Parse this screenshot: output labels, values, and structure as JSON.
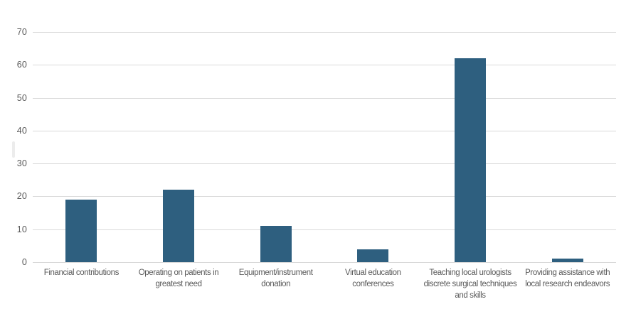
{
  "chart_data": {
    "type": "bar",
    "title": "",
    "categories": [
      "Financial contributions",
      "Operating on patients in greatest need",
      "Equipment/instrument donation",
      "Virtual education conferences",
      "Teaching local urologists discrete surgical techniques and skills",
      "Providing assistance with local research endeavors"
    ],
    "values": [
      19,
      22,
      11,
      4,
      62,
      1
    ],
    "xlabel": "",
    "ylabel": "",
    "yticks": [
      0,
      10,
      20,
      30,
      40,
      50,
      60,
      70
    ],
    "ylim": [
      0,
      70
    ],
    "grid": "horizontal",
    "legend": "none",
    "colors": {
      "bar": "#2E5F7F",
      "gridline": "#D9D9D9",
      "axis_line": "#D9D9D9",
      "tick_label": "#595959",
      "category_label": "#595959",
      "background": "#FFFFFF"
    }
  }
}
